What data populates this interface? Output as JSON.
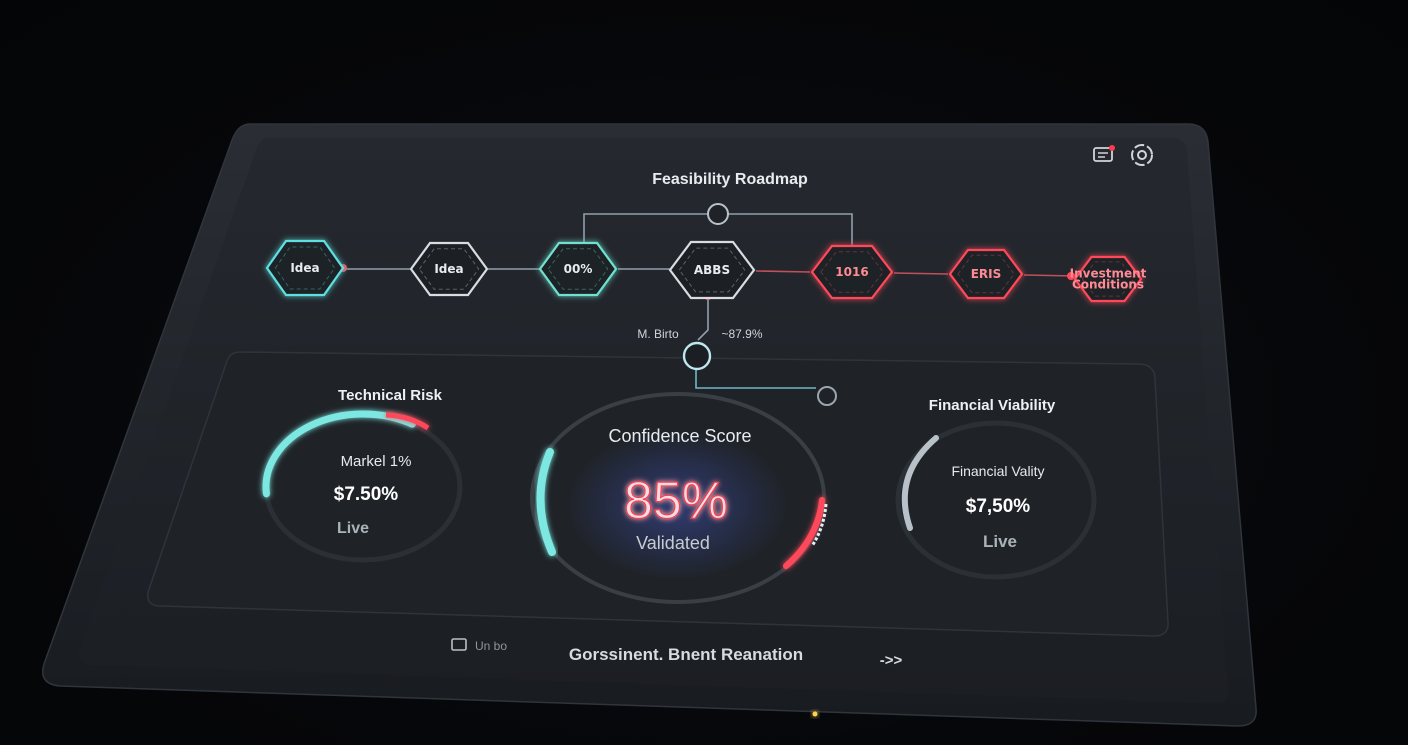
{
  "header": {
    "title": "Feasibility Roadmap",
    "icons": [
      "notification-card-icon",
      "settings-ring-icon"
    ]
  },
  "roadmap": {
    "nodes": [
      {
        "label": "Idea",
        "color": "#5fe0e0"
      },
      {
        "label": "Idea",
        "color": "#d8dde2"
      },
      {
        "label": "00%",
        "color": "#6fe0d0"
      },
      {
        "label": "ABBS",
        "color": "#d8dde2"
      },
      {
        "label": "1016",
        "color": "#ff4a5a"
      },
      {
        "label": "ERIS",
        "color": "#ff4a5a"
      },
      {
        "label": "Investment Conditions",
        "color": "#ff4a5a"
      }
    ],
    "marker_left": "M. Birto",
    "marker_right": "~87.9%"
  },
  "technical_risk": {
    "title": "Technical Risk",
    "line1": "Markel 1%",
    "value": "$7.50%",
    "status": "Live",
    "progress": 0.35
  },
  "confidence": {
    "title": "Confidence Score",
    "value": "85%",
    "status": "Validated",
    "progress": 0.85
  },
  "financial": {
    "title": "Financial Viability",
    "line1": "Financial Vality",
    "value": "$7,50%",
    "status": "Live",
    "progress": 0.3
  },
  "footer": {
    "left_text": "Un bo",
    "center_text": "Gorssinent. Bnent Reanation",
    "arrow": "->>"
  },
  "colors": {
    "cyan": "#5fe6e0",
    "red": "#ff3b4e",
    "panel": "#1e2228",
    "bezel": "#14171c"
  }
}
